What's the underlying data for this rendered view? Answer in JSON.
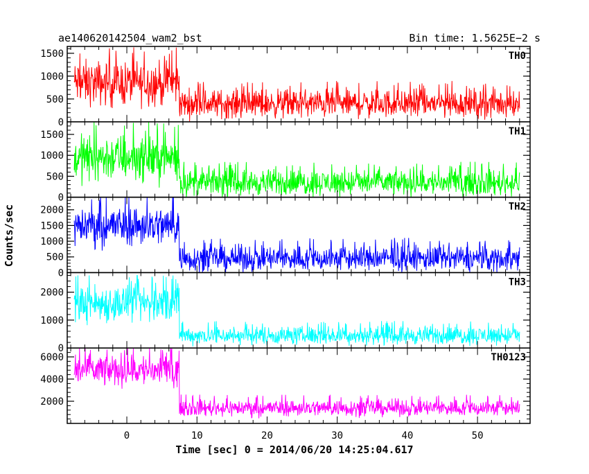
{
  "header": {
    "left_title": "ae140620142504_wam2_bst",
    "right_title": "Bin time: 1.5625E−2 s"
  },
  "chart_data": {
    "type": "line",
    "title": "ae140620142504_wam2_bst",
    "xlabel": "Time [sec] 0 = 2014/06/20 14:25:04.617",
    "ylabel": "Counts/sec",
    "xlim": [
      -8.5,
      57.5
    ],
    "x_ticks": [
      0,
      10,
      20,
      30,
      40,
      50
    ],
    "x_tick_labels": [
      "0",
      "10",
      "20",
      "30",
      "40",
      "50"
    ],
    "x_data_range": [
      -7.5,
      56
    ],
    "transition_time": 7.5,
    "bin_time_s": 0.015625,
    "grid": false,
    "panels": [
      {
        "name": "TH0",
        "color": "#ff0000",
        "ylim": [
          0,
          1650
        ],
        "y_ticks": [
          0,
          500,
          1000,
          1500
        ],
        "y_tick_labels": [
          "0",
          "500",
          "1000",
          "1500"
        ],
        "before": {
          "mean": 850,
          "low": 150,
          "high": 1650
        },
        "after": {
          "mean": 400,
          "low": 0,
          "high": 950
        }
      },
      {
        "name": "TH1",
        "color": "#00ff00",
        "ylim": [
          0,
          1800
        ],
        "y_ticks": [
          0,
          500,
          1000,
          1500
        ],
        "y_tick_labels": [
          "0",
          "500",
          "1000",
          "1500"
        ],
        "before": {
          "mean": 950,
          "low": 100,
          "high": 1800
        },
        "after": {
          "mean": 350,
          "low": 0,
          "high": 950
        }
      },
      {
        "name": "TH2",
        "color": "#0000ff",
        "ylim": [
          0,
          2400
        ],
        "y_ticks": [
          0,
          500,
          1000,
          1500,
          2000
        ],
        "y_tick_labels": [
          "0",
          "500",
          "1000",
          "1500",
          "2000"
        ],
        "before": {
          "mean": 1500,
          "low": 450,
          "high": 2400
        },
        "after": {
          "mean": 450,
          "low": 0,
          "high": 1250
        }
      },
      {
        "name": "TH3",
        "color": "#00ffff",
        "ylim": [
          0,
          2700
        ],
        "y_ticks": [
          0,
          1000,
          2000
        ],
        "y_tick_labels": [
          "0",
          "1000",
          "2000"
        ],
        "before": {
          "mean": 1600,
          "low": 500,
          "high": 2600
        },
        "after": {
          "mean": 450,
          "low": 0,
          "high": 1000
        }
      },
      {
        "name": "TH0123",
        "color": "#ff00ff",
        "ylim": [
          0,
          6800
        ],
        "y_ticks": [
          2000,
          4000,
          6000
        ],
        "y_tick_labels": [
          "2000",
          "4000",
          "6000"
        ],
        "before": {
          "mean": 4800,
          "low": 2300,
          "high": 6800
        },
        "after": {
          "mean": 1400,
          "low": 400,
          "high": 2700
        }
      }
    ]
  }
}
